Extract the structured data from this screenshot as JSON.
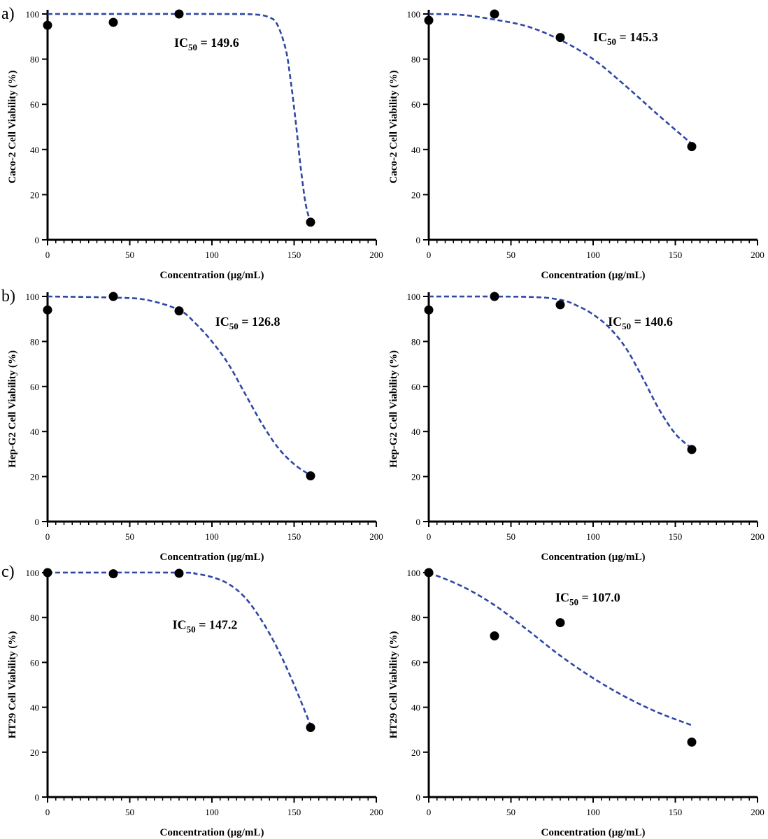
{
  "figure": {
    "rows": [
      {
        "label": "a)"
      },
      {
        "label": "b)"
      },
      {
        "label": "c)"
      }
    ]
  },
  "chart_data": [
    {
      "type": "scatter",
      "row": 0,
      "col": 0,
      "title": "",
      "xlabel": "Concentration (μg/mL)",
      "ylabel": "Caco-2 Cell Viability (%)",
      "xlim": [
        0,
        200
      ],
      "ylim": [
        0,
        100
      ],
      "xticks": [
        0,
        50,
        100,
        150,
        200
      ],
      "yticks": [
        0,
        20,
        40,
        60,
        80,
        100
      ],
      "points": {
        "x": [
          0,
          40,
          80,
          160
        ],
        "y": [
          95,
          96.3,
          100,
          7.8
        ]
      },
      "fit_curve": {
        "x": [
          0,
          100,
          125,
          135,
          140,
          145,
          148,
          151,
          154,
          157,
          160
        ],
        "y": [
          100,
          100,
          99.8,
          98.5,
          95,
          84,
          70,
          52,
          32,
          16,
          7.5
        ]
      },
      "ic50_label": {
        "prefix": "IC",
        "sub": "50",
        "value": " = 149.6"
      },
      "ic50_anchor": [
        77,
        85.5
      ]
    },
    {
      "type": "scatter",
      "row": 0,
      "col": 1,
      "title": "",
      "xlabel": "Concentration (μg/mL)",
      "ylabel": "Caco-2 Cell Viability (%)",
      "xlim": [
        0,
        200
      ],
      "ylim": [
        0,
        100
      ],
      "xticks": [
        0,
        50,
        100,
        150,
        200
      ],
      "yticks": [
        0,
        20,
        40,
        60,
        80,
        100
      ],
      "points": {
        "x": [
          0,
          40,
          80,
          160
        ],
        "y": [
          97.2,
          100,
          89.6,
          41.3
        ]
      },
      "fit_curve": {
        "x": [
          0,
          20,
          40,
          60,
          80,
          100,
          120,
          140,
          160
        ],
        "y": [
          100,
          99.6,
          97.5,
          94.5,
          88.5,
          80,
          68,
          55,
          42.5
        ]
      },
      "ic50_label": {
        "prefix": "IC",
        "sub": "50",
        "value": " = 145.3"
      },
      "ic50_anchor": [
        100,
        88
      ]
    },
    {
      "type": "scatter",
      "row": 1,
      "col": 0,
      "title": "",
      "xlabel": "Concentration (μg/mL)",
      "ylabel": "Hep-G2 Cell Viability (%)",
      "xlim": [
        0,
        200
      ],
      "ylim": [
        0,
        100
      ],
      "xticks": [
        0,
        50,
        100,
        150,
        200
      ],
      "yticks": [
        0,
        20,
        40,
        60,
        80,
        100
      ],
      "points": {
        "x": [
          0,
          40,
          80,
          160
        ],
        "y": [
          94,
          100,
          93.6,
          20.3
        ]
      },
      "fit_curve": {
        "x": [
          0,
          40,
          60,
          80,
          90,
          100,
          110,
          120,
          130,
          140,
          150,
          160
        ],
        "y": [
          100,
          99.5,
          98.5,
          94,
          88,
          80,
          70,
          57,
          44,
          33,
          25.5,
          20.5
        ]
      },
      "ic50_label": {
        "prefix": "IC",
        "sub": "50",
        "value": " = 126.8"
      },
      "ic50_anchor": [
        102,
        87
      ]
    },
    {
      "type": "scatter",
      "row": 1,
      "col": 1,
      "title": "",
      "xlabel": "Concentration (μg/mL)",
      "ylabel": "Hep-G2 Cell Viability (%)",
      "xlim": [
        0,
        200
      ],
      "ylim": [
        0,
        100
      ],
      "xticks": [
        0,
        50,
        100,
        150,
        200
      ],
      "yticks": [
        0,
        20,
        40,
        60,
        80,
        100
      ],
      "points": {
        "x": [
          0,
          40,
          80,
          160
        ],
        "y": [
          94,
          100,
          96.3,
          32
        ]
      },
      "fit_curve": {
        "x": [
          0,
          60,
          80,
          90,
          100,
          110,
          120,
          130,
          140,
          150,
          160
        ],
        "y": [
          100,
          99.8,
          98.5,
          96,
          92,
          86,
          77,
          64,
          50,
          39,
          32.5
        ]
      },
      "ic50_label": {
        "prefix": "IC",
        "sub": "50",
        "value": " = 140.6"
      },
      "ic50_anchor": [
        109,
        87
      ]
    },
    {
      "type": "scatter",
      "row": 2,
      "col": 0,
      "title": "",
      "xlabel": "Concentration (μg/mL)",
      "ylabel": "HT29 Cell Viability (%)",
      "xlim": [
        0,
        200
      ],
      "ylim": [
        0,
        100
      ],
      "xticks": [
        0,
        50,
        100,
        150,
        200
      ],
      "yticks": [
        0,
        20,
        40,
        60,
        80,
        100
      ],
      "points": {
        "x": [
          0,
          40,
          80,
          160
        ],
        "y": [
          100,
          99.5,
          99.7,
          31
        ]
      },
      "fit_curve": {
        "x": [
          0,
          80,
          90,
          100,
          110,
          120,
          130,
          140,
          150,
          160
        ],
        "y": [
          100,
          100,
          99.5,
          98,
          95,
          89,
          79,
          66,
          50,
          32
        ]
      },
      "ic50_label": {
        "prefix": "IC",
        "sub": "50",
        "value": " = 147.2"
      },
      "ic50_anchor": [
        76,
        75
      ]
    },
    {
      "type": "scatter",
      "row": 2,
      "col": 1,
      "title": "",
      "xlabel": "Concentration (μg/mL)",
      "ylabel": "HT29 Cell Viability (%)",
      "xlim": [
        0,
        200
      ],
      "ylim": [
        0,
        100
      ],
      "xticks": [
        0,
        50,
        100,
        150,
        200
      ],
      "yticks": [
        0,
        20,
        40,
        60,
        80,
        100
      ],
      "points": {
        "x": [
          0,
          40,
          80,
          160
        ],
        "y": [
          100,
          71.8,
          77.7,
          24.5
        ]
      },
      "fit_curve": {
        "x": [
          0,
          20,
          40,
          60,
          80,
          100,
          120,
          140,
          160
        ],
        "y": [
          100,
          94,
          85.5,
          74.5,
          63,
          53,
          44.5,
          37.5,
          32
        ]
      },
      "ic50_label": {
        "prefix": "IC",
        "sub": "50",
        "value": " = 107.0"
      },
      "ic50_anchor": [
        77,
        87
      ]
    }
  ]
}
